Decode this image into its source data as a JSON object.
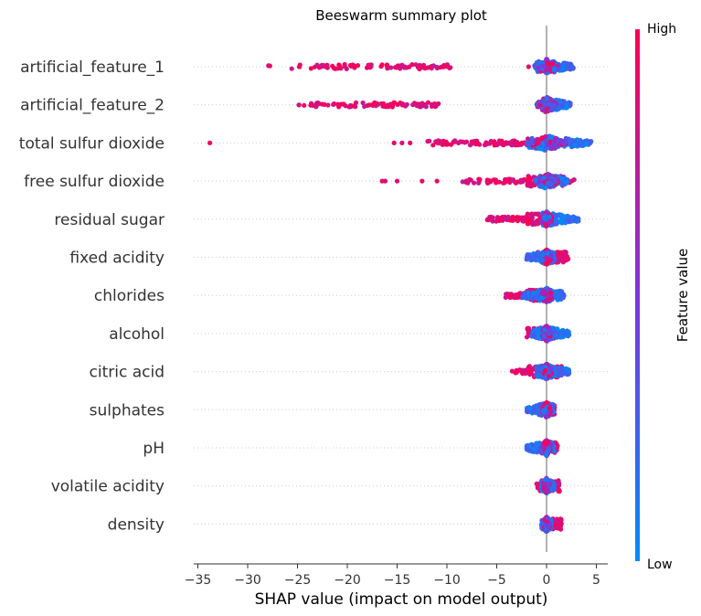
{
  "chart_data": {
    "type": "scatter",
    "title": "Beeswarm summary plot",
    "xlabel": "SHAP value (impact on model output)",
    "xlim": [
      -36,
      6
    ],
    "xticks": [
      -35,
      -30,
      -25,
      -20,
      -15,
      -10,
      -5,
      0,
      5
    ],
    "xtick_labels": [
      "−35",
      "−30",
      "−25",
      "−20",
      "−15",
      "−10",
      "−5",
      "0",
      "5"
    ],
    "colorbar": {
      "label": "Feature value",
      "high": "High",
      "low": "Low",
      "high_color": "#ff0052",
      "low_color": "#008bfb"
    },
    "features": [
      {
        "name": "artificial_feature_1",
        "low_min": -1.0,
        "low_max": 2.7,
        "high_min": -28.2,
        "high_max": -9.6,
        "core": 1.2,
        "outliers": [
          [
            -1.8,
            0.9
          ]
        ]
      },
      {
        "name": "artificial_feature_2",
        "low_min": -0.3,
        "low_max": 2.4,
        "high_min": -25.0,
        "high_max": -10.5,
        "core": 1.0,
        "outliers": []
      },
      {
        "name": "total sulfur dioxide",
        "low_min": -2.0,
        "low_max": 4.5,
        "high_min": -12.0,
        "high_max": -1.0,
        "core": 2.0,
        "outliers": [
          [
            -33.8,
            0.95
          ],
          [
            -15.3,
            0.9
          ],
          [
            -14.5,
            0.85
          ],
          [
            -13.7,
            0.9
          ]
        ]
      },
      {
        "name": "free sulfur dioxide",
        "low_min": -1.0,
        "low_max": 2.2,
        "high_min": -8.5,
        "high_max": 2.8,
        "core": 1.2,
        "outliers": [
          [
            -16.5,
            0.9
          ],
          [
            -16.2,
            0.9
          ],
          [
            -15.0,
            0.9
          ],
          [
            -12.5,
            0.9
          ],
          [
            -11.0,
            0.9
          ]
        ]
      },
      {
        "name": "residual sugar",
        "low_min": -0.5,
        "low_max": 3.2,
        "high_min": -6.0,
        "high_max": -0.5,
        "core": 0.5,
        "outliers": []
      },
      {
        "name": "fixed acidity",
        "low_min": -2.0,
        "low_max": 0.8,
        "high_min": -1.0,
        "high_max": 2.2,
        "core": 0.5,
        "outliers": []
      },
      {
        "name": "chlorides",
        "low_min": -2.5,
        "low_max": 1.8,
        "high_min": -4.2,
        "high_max": 0.5,
        "core": 0.5,
        "outliers": []
      },
      {
        "name": "alcohol",
        "low_min": -1.5,
        "low_max": 2.3,
        "high_min": -2.0,
        "high_max": 1.0,
        "core": 0.4,
        "outliers": []
      },
      {
        "name": "citric acid",
        "low_min": -1.0,
        "low_max": 2.3,
        "high_min": -3.5,
        "high_max": 1.5,
        "core": 0.5,
        "outliers": []
      },
      {
        "name": "sulphates",
        "low_min": -2.0,
        "low_max": 0.8,
        "high_min": -0.5,
        "high_max": 0.8,
        "core": 0.4,
        "outliers": []
      },
      {
        "name": "pH",
        "low_min": -2.0,
        "low_max": 0.8,
        "high_min": -0.8,
        "high_max": 1.1,
        "core": 0.4,
        "outliers": []
      },
      {
        "name": "volatile acidity",
        "low_min": -0.5,
        "low_max": 0.8,
        "high_min": -1.0,
        "high_max": 1.3,
        "core": 0.3,
        "outliers": []
      },
      {
        "name": "density",
        "low_min": -0.5,
        "low_max": 0.5,
        "high_min": -0.5,
        "high_max": 1.5,
        "core": 0.3,
        "outliers": []
      }
    ]
  }
}
